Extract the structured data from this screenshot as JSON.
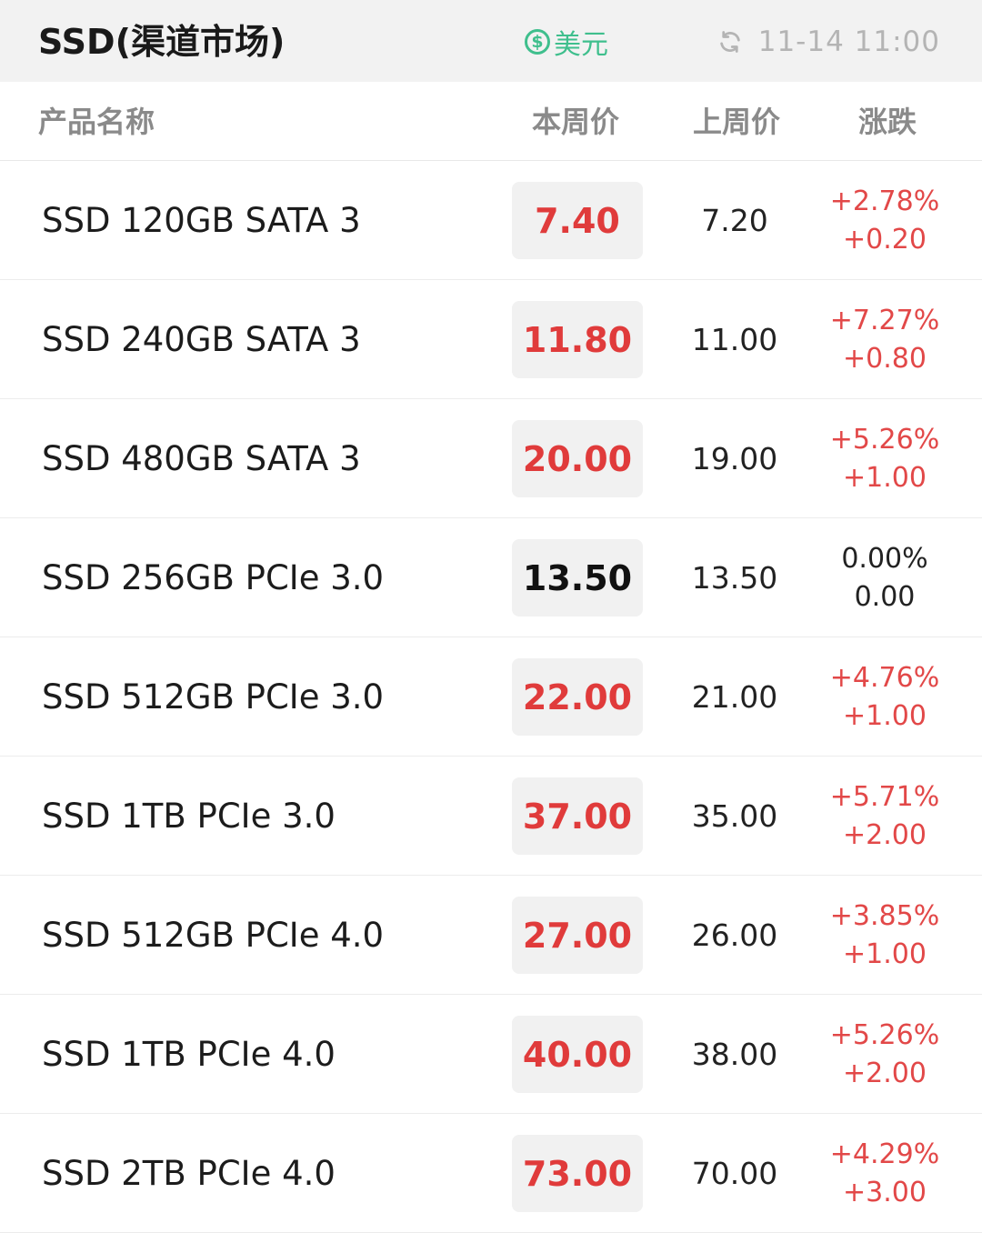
{
  "header": {
    "title": "SSD(渠道市场)",
    "currency_symbol": "$",
    "currency_label": "美元",
    "updated_time": "11-14 11:00"
  },
  "columns": {
    "name": "产品名称",
    "this_week": "本周价",
    "last_week": "上周价",
    "change": "涨跌"
  },
  "colors": {
    "up": "#e03b3b",
    "flat": "#111111",
    "accent": "#3fbf8d"
  },
  "rows": [
    {
      "name": "SSD 120GB SATA 3",
      "this_week": "7.40",
      "last_week": "7.20",
      "pct": "+2.78%",
      "diff": "+0.20",
      "trend": "up"
    },
    {
      "name": "SSD 240GB SATA 3",
      "this_week": "11.80",
      "last_week": "11.00",
      "pct": "+7.27%",
      "diff": "+0.80",
      "trend": "up"
    },
    {
      "name": "SSD 480GB SATA 3",
      "this_week": "20.00",
      "last_week": "19.00",
      "pct": "+5.26%",
      "diff": "+1.00",
      "trend": "up"
    },
    {
      "name": "SSD 256GB PCIe 3.0",
      "this_week": "13.50",
      "last_week": "13.50",
      "pct": "0.00%",
      "diff": "0.00",
      "trend": "flat"
    },
    {
      "name": "SSD 512GB PCIe 3.0",
      "this_week": "22.00",
      "last_week": "21.00",
      "pct": "+4.76%",
      "diff": "+1.00",
      "trend": "up"
    },
    {
      "name": "SSD 1TB PCIe 3.0",
      "this_week": "37.00",
      "last_week": "35.00",
      "pct": "+5.71%",
      "diff": "+2.00",
      "trend": "up"
    },
    {
      "name": "SSD 512GB PCIe 4.0",
      "this_week": "27.00",
      "last_week": "26.00",
      "pct": "+3.85%",
      "diff": "+1.00",
      "trend": "up"
    },
    {
      "name": "SSD 1TB PCIe 4.0",
      "this_week": "40.00",
      "last_week": "38.00",
      "pct": "+5.26%",
      "diff": "+2.00",
      "trend": "up"
    },
    {
      "name": "SSD 2TB PCIe 4.0",
      "this_week": "73.00",
      "last_week": "70.00",
      "pct": "+4.29%",
      "diff": "+3.00",
      "trend": "up"
    }
  ]
}
